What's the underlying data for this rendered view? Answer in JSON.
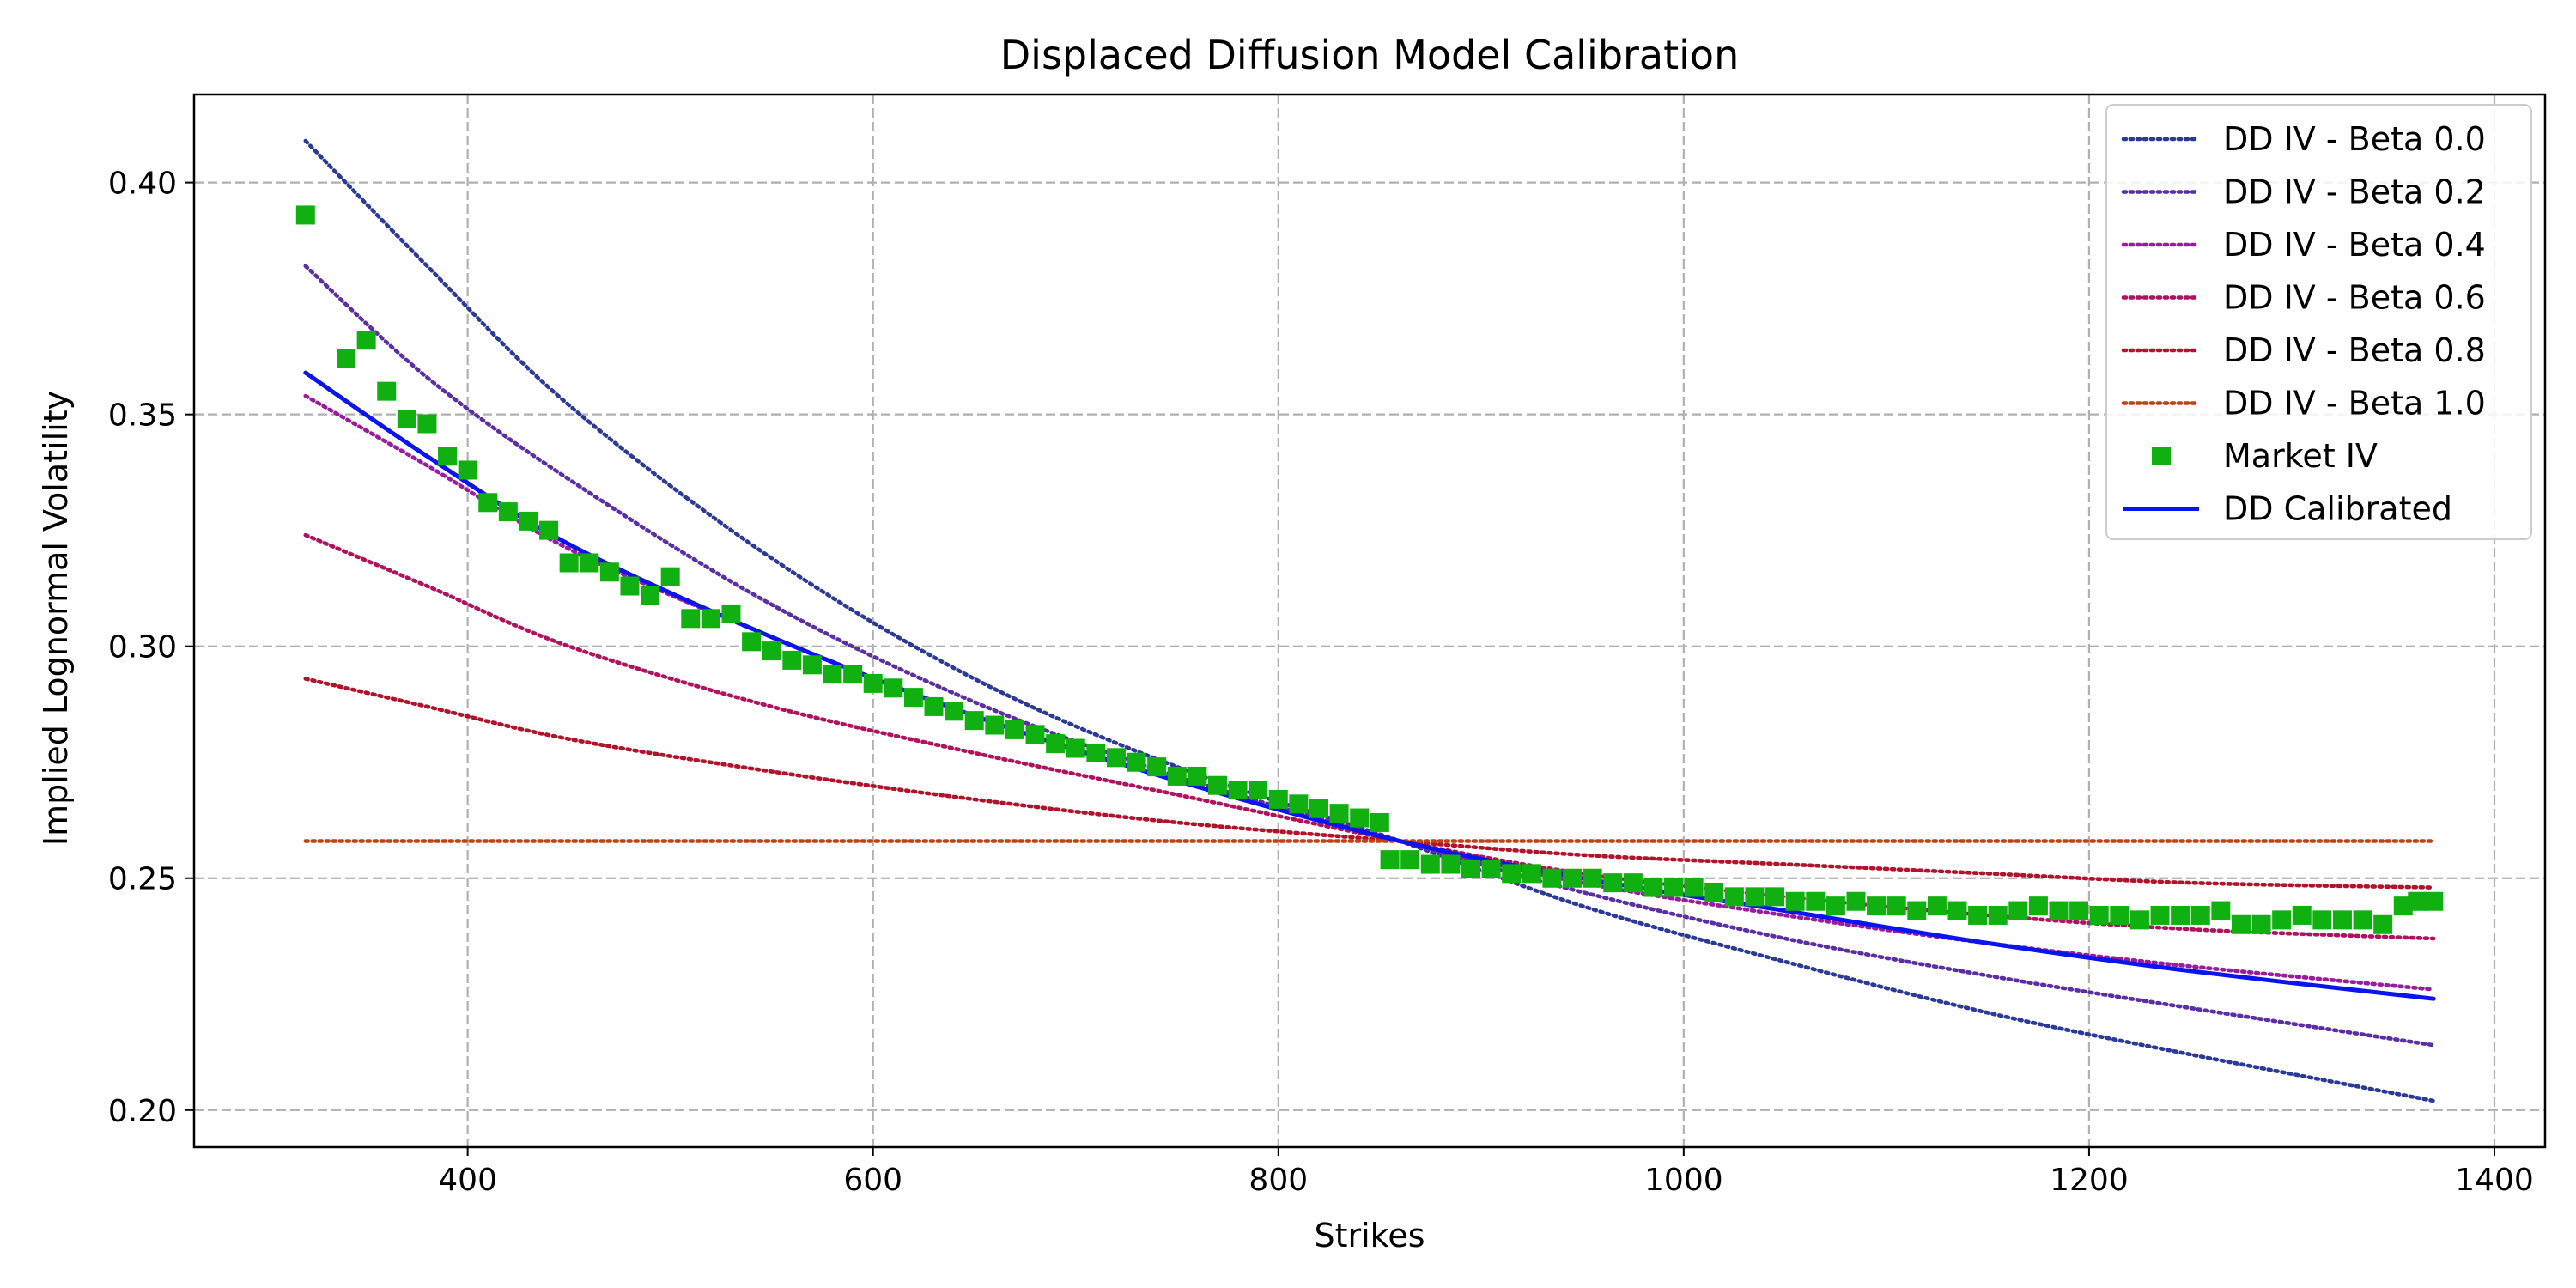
{
  "chart_data": {
    "type": "line",
    "title": "Displaced Diffusion Model Calibration",
    "xlabel": "Strikes",
    "ylabel": "Implied Lognormal Volatility",
    "xlim": [
      265,
      1425
    ],
    "ylim": [
      0.192,
      0.419
    ],
    "xticks": [
      400,
      600,
      800,
      1000,
      1200,
      1400
    ],
    "yticks": [
      0.2,
      0.25,
      0.3,
      0.35,
      0.4
    ],
    "xtick_labels": [
      "400",
      "600",
      "800",
      "1000",
      "1200",
      "1400"
    ],
    "ytick_labels": [
      "0.20",
      "0.25",
      "0.30",
      "0.35",
      "0.40"
    ],
    "grid": true,
    "legend_position": "top-right",
    "x": [
      320,
      380,
      450,
      550,
      650,
      750,
      860,
      950,
      1050,
      1150,
      1250,
      1370
    ],
    "series": [
      {
        "name": "DD IV - Beta 0.0",
        "style": "dotted",
        "color": "#2b3a98",
        "values": [
          0.409,
          0.382,
          0.352,
          0.319,
          0.293,
          0.274,
          0.258,
          0.244,
          0.232,
          0.221,
          0.212,
          0.202
        ]
      },
      {
        "name": "DD IV - Beta 0.2",
        "style": "dotted",
        "color": "#5b2ea6",
        "values": [
          0.382,
          0.358,
          0.336,
          0.309,
          0.288,
          0.272,
          0.258,
          0.247,
          0.237,
          0.229,
          0.222,
          0.214
        ]
      },
      {
        "name": "DD IV - Beta 0.4",
        "style": "dotted",
        "color": "#9a1ba0",
        "values": [
          0.354,
          0.339,
          0.321,
          0.302,
          0.285,
          0.271,
          0.258,
          0.249,
          0.242,
          0.236,
          0.231,
          0.226
        ]
      },
      {
        "name": "DD IV - Beta 0.6",
        "style": "dotted",
        "color": "#b0125e",
        "values": [
          0.324,
          0.313,
          0.3,
          0.287,
          0.277,
          0.268,
          0.258,
          0.251,
          0.246,
          0.242,
          0.239,
          0.237
        ]
      },
      {
        "name": "DD IV - Beta 0.8",
        "style": "dotted",
        "color": "#b3122b",
        "values": [
          0.293,
          0.287,
          0.28,
          0.273,
          0.267,
          0.262,
          0.258,
          0.255,
          0.253,
          0.251,
          0.249,
          0.248
        ]
      },
      {
        "name": "DD IV - Beta 1.0",
        "style": "dotted",
        "color": "#c4400e",
        "values": [
          0.258,
          0.258,
          0.258,
          0.258,
          0.258,
          0.258,
          0.258,
          0.258,
          0.258,
          0.258,
          0.258,
          0.258
        ]
      },
      {
        "name": "DD Calibrated",
        "style": "solid",
        "color": "#0a14ef",
        "values": [
          0.359,
          0.341,
          0.322,
          0.302,
          0.285,
          0.271,
          0.258,
          0.25,
          0.243,
          0.236,
          0.23,
          0.224
        ]
      }
    ],
    "market": {
      "name": "Market IV",
      "color": "#10b010",
      "points": [
        [
          320,
          0.393
        ],
        [
          340,
          0.362
        ],
        [
          350,
          0.366
        ],
        [
          360,
          0.355
        ],
        [
          370,
          0.349
        ],
        [
          380,
          0.348
        ],
        [
          390,
          0.341
        ],
        [
          400,
          0.338
        ],
        [
          410,
          0.331
        ],
        [
          420,
          0.329
        ],
        [
          430,
          0.327
        ],
        [
          440,
          0.325
        ],
        [
          450,
          0.318
        ],
        [
          460,
          0.318
        ],
        [
          470,
          0.316
        ],
        [
          480,
          0.313
        ],
        [
          490,
          0.311
        ],
        [
          500,
          0.315
        ],
        [
          510,
          0.306
        ],
        [
          520,
          0.306
        ],
        [
          530,
          0.307
        ],
        [
          540,
          0.301
        ],
        [
          550,
          0.299
        ],
        [
          560,
          0.297
        ],
        [
          570,
          0.296
        ],
        [
          580,
          0.294
        ],
        [
          590,
          0.294
        ],
        [
          600,
          0.292
        ],
        [
          610,
          0.291
        ],
        [
          620,
          0.289
        ],
        [
          630,
          0.287
        ],
        [
          640,
          0.286
        ],
        [
          650,
          0.284
        ],
        [
          660,
          0.283
        ],
        [
          670,
          0.282
        ],
        [
          680,
          0.281
        ],
        [
          690,
          0.279
        ],
        [
          700,
          0.278
        ],
        [
          710,
          0.277
        ],
        [
          720,
          0.276
        ],
        [
          730,
          0.275
        ],
        [
          740,
          0.274
        ],
        [
          750,
          0.272
        ],
        [
          760,
          0.272
        ],
        [
          770,
          0.27
        ],
        [
          780,
          0.269
        ],
        [
          790,
          0.269
        ],
        [
          800,
          0.267
        ],
        [
          810,
          0.266
        ],
        [
          820,
          0.265
        ],
        [
          830,
          0.264
        ],
        [
          840,
          0.263
        ],
        [
          850,
          0.262
        ],
        [
          855,
          0.254
        ],
        [
          865,
          0.254
        ],
        [
          875,
          0.253
        ],
        [
          885,
          0.253
        ],
        [
          895,
          0.252
        ],
        [
          905,
          0.252
        ],
        [
          915,
          0.251
        ],
        [
          925,
          0.251
        ],
        [
          935,
          0.25
        ],
        [
          945,
          0.25
        ],
        [
          955,
          0.25
        ],
        [
          965,
          0.249
        ],
        [
          975,
          0.249
        ],
        [
          985,
          0.248
        ],
        [
          995,
          0.248
        ],
        [
          1005,
          0.248
        ],
        [
          1015,
          0.247
        ],
        [
          1025,
          0.246
        ],
        [
          1035,
          0.246
        ],
        [
          1045,
          0.246
        ],
        [
          1055,
          0.245
        ],
        [
          1065,
          0.245
        ],
        [
          1075,
          0.244
        ],
        [
          1085,
          0.245
        ],
        [
          1095,
          0.244
        ],
        [
          1105,
          0.244
        ],
        [
          1115,
          0.243
        ],
        [
          1125,
          0.244
        ],
        [
          1135,
          0.243
        ],
        [
          1145,
          0.242
        ],
        [
          1155,
          0.242
        ],
        [
          1165,
          0.243
        ],
        [
          1175,
          0.244
        ],
        [
          1185,
          0.243
        ],
        [
          1195,
          0.243
        ],
        [
          1205,
          0.242
        ],
        [
          1215,
          0.242
        ],
        [
          1225,
          0.241
        ],
        [
          1235,
          0.242
        ],
        [
          1245,
          0.242
        ],
        [
          1255,
          0.242
        ],
        [
          1265,
          0.243
        ],
        [
          1275,
          0.24
        ],
        [
          1285,
          0.24
        ],
        [
          1295,
          0.241
        ],
        [
          1305,
          0.242
        ],
        [
          1315,
          0.241
        ],
        [
          1325,
          0.241
        ],
        [
          1335,
          0.241
        ],
        [
          1345,
          0.24
        ],
        [
          1355,
          0.244
        ],
        [
          1362,
          0.245
        ],
        [
          1370,
          0.245
        ]
      ]
    }
  }
}
